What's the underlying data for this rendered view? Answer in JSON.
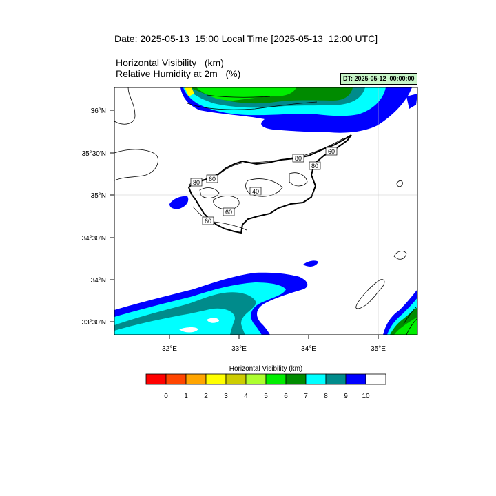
{
  "header": {
    "date_line": "Date: 2025-05-13  15:00 Local Time [2025-05-13  12:00 UTC]",
    "var1": "Horizontal Visibility   (km)",
    "var2": "Relative Humidity at 2m   (%)",
    "dt_label": "DT: 2025-05-12_00:00:00",
    "dt_color": "#c8f5c8"
  },
  "map": {
    "lat_labels": [
      "36°N",
      "35°30'N",
      "35°N",
      "34°30'N",
      "34°N",
      "33°30'N"
    ],
    "lon_labels": [
      "32°E",
      "33°E",
      "34°E",
      "35°E"
    ],
    "contour_labels": [
      "80",
      "60",
      "80",
      "60",
      "40",
      "60",
      "80",
      "60"
    ]
  },
  "colorbar": {
    "title": "Horizontal Visibility  (km)",
    "colors": [
      "#ff0000",
      "#ff4500",
      "#ffa500",
      "#ffff00",
      "#cdcd00",
      "#adff2f",
      "#00ee00",
      "#008b00",
      "#00ffff",
      "#008b8b",
      "#0000ff",
      "#ffffff"
    ],
    "labels": [
      "0",
      "1",
      "2",
      "3",
      "4",
      "5",
      "6",
      "7",
      "8",
      "9",
      "10"
    ]
  }
}
